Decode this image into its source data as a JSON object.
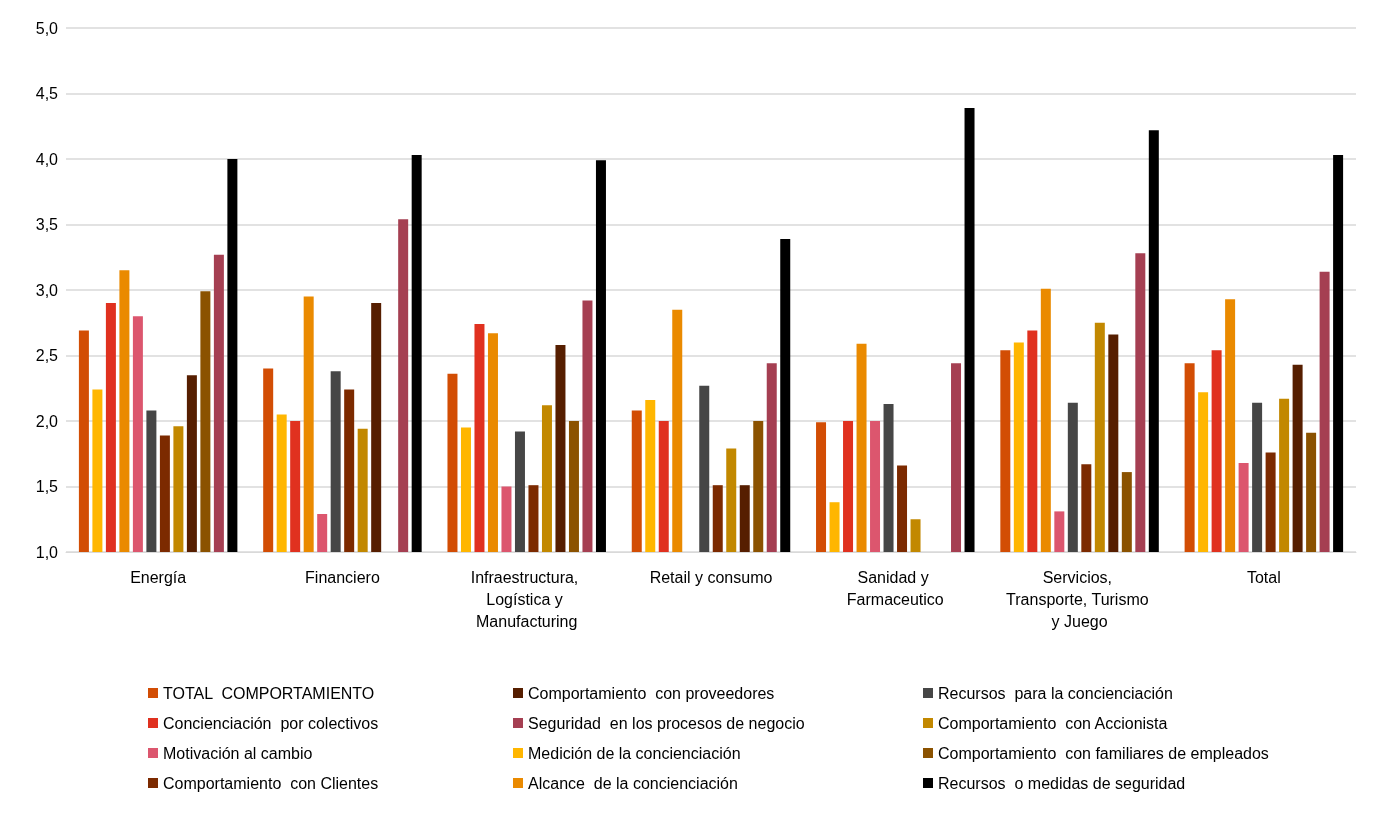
{
  "chart_data": {
    "type": "bar",
    "categories": [
      "Energía",
      "Financiero",
      "Infraestructura, Logística y Manufacturing",
      "Retail y consumo",
      "Sanidad y Farmaceutico",
      "Servicios, Transporte, Turismo y Juego",
      "Total"
    ],
    "series": [
      {
        "name": "TOTAL  COMPORTAMIENTO",
        "color": "#d24d04",
        "values": [
          2.69,
          2.4,
          2.36,
          2.08,
          1.99,
          2.54,
          2.44
        ]
      },
      {
        "name": "Medición de la concienciación",
        "color": "#ffb600",
        "values": [
          2.24,
          2.05,
          1.95,
          2.16,
          1.38,
          2.6,
          2.22
        ]
      },
      {
        "name": "Concienciación  por colectivos",
        "color": "#e0311f",
        "values": [
          2.9,
          2.0,
          2.74,
          2.0,
          2.0,
          2.69,
          2.54
        ]
      },
      {
        "name": "Alcance  de la concienciación",
        "color": "#ea8a00",
        "values": [
          3.15,
          2.95,
          2.67,
          2.85,
          2.59,
          3.01,
          2.93
        ]
      },
      {
        "name": "Motivación al cambio",
        "color": "#dc566e",
        "values": [
          2.8,
          1.29,
          1.5,
          null,
          2.0,
          1.31,
          1.68
        ]
      },
      {
        "name": "Recursos  para la concienciación",
        "color": "#464646",
        "values": [
          2.08,
          2.38,
          1.92,
          2.27,
          2.13,
          2.14,
          2.14
        ]
      },
      {
        "name": "Comportamiento  con Clientes",
        "color": "#7c2a00",
        "values": [
          1.89,
          2.24,
          1.51,
          1.51,
          1.66,
          1.67,
          1.76
        ]
      },
      {
        "name": "Comportamiento  con Accionista",
        "color": "#c28800",
        "values": [
          1.96,
          1.94,
          2.12,
          1.79,
          1.25,
          2.75,
          2.17
        ]
      },
      {
        "name": "Comportamiento  con proveedores",
        "color": "#561e00",
        "values": [
          2.35,
          2.9,
          2.58,
          1.51,
          null,
          2.66,
          2.43
        ]
      },
      {
        "name": "Comportamiento  con familiares de empleados",
        "color": "#8b5200",
        "values": [
          2.99,
          null,
          2.0,
          2.0,
          null,
          1.61,
          1.91
        ]
      },
      {
        "name": "Seguridad  en los procesos de negocio",
        "color": "#a53f52",
        "values": [
          3.27,
          3.54,
          2.92,
          2.44,
          2.44,
          3.28,
          3.14
        ]
      },
      {
        "name": "Recursos  o medidas de seguridad",
        "color": "#000000",
        "values": [
          4.0,
          4.03,
          3.99,
          3.39,
          4.39,
          4.22,
          4.03
        ]
      }
    ],
    "ylim": [
      1,
      5
    ],
    "yticks": [
      {
        "value": 1,
        "label": "1,0"
      },
      {
        "value": 1.5,
        "label": "1,5"
      },
      {
        "value": 2,
        "label": "2,0"
      },
      {
        "value": 2.5,
        "label": "2,5"
      },
      {
        "value": 3,
        "label": "3,0"
      },
      {
        "value": 3.5,
        "label": "3,5"
      },
      {
        "value": 4,
        "label": "4,0"
      },
      {
        "value": 4.5,
        "label": "4,5"
      },
      {
        "value": 5,
        "label": "5,0"
      }
    ],
    "grid": "y",
    "legend": "bottom"
  }
}
